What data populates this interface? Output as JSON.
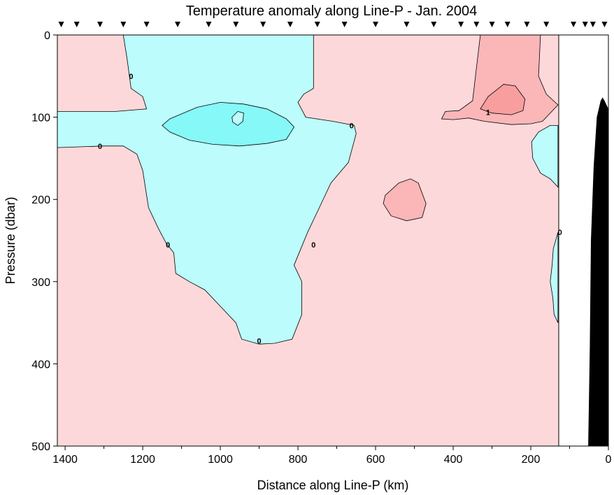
{
  "chart_data": {
    "type": "heatmap",
    "title": "Temperature anomaly along Line-P - Jan. 2004",
    "xlabel": "Distance along Line-P (km)",
    "ylabel": "Pressure (dbar)",
    "xlim": [
      1420,
      0
    ],
    "ylim": [
      0,
      500
    ],
    "x_reversed": true,
    "y_reversed": true,
    "x_ticks": [
      1400,
      1200,
      1000,
      800,
      600,
      400,
      200,
      0
    ],
    "y_ticks": [
      0,
      100,
      200,
      300,
      400,
      500
    ],
    "station_distances_km": [
      1410,
      1370,
      1310,
      1250,
      1190,
      1110,
      1030,
      960,
      890,
      820,
      750,
      680,
      600,
      520,
      450,
      380,
      340,
      300,
      260,
      210,
      160,
      90,
      60,
      40,
      10
    ],
    "colors": {
      "positive_anomaly": "#fdd8da",
      "anomaly_above_1": "#fbb6b8",
      "anomaly_above_2": "#f89e9f",
      "negative_anomaly": "#bcfcfc",
      "anomaly_below_minus_1": "#86f8f8",
      "no_data": "#ffffff",
      "bathymetry": "#000000"
    },
    "contour_labels": [
      {
        "text": "0",
        "x": 1230,
        "y": 50
      },
      {
        "text": "0",
        "x": 1310,
        "y": 135
      },
      {
        "text": "0",
        "x": 662,
        "y": 110
      },
      {
        "text": "1",
        "x": 310,
        "y": 94
      },
      {
        "text": "0",
        "x": 1135,
        "y": 255
      },
      {
        "text": "0",
        "x": 760,
        "y": 255
      },
      {
        "text": "0",
        "x": 900,
        "y": 372
      },
      {
        "text": "0",
        "x": 125,
        "y": 240
      }
    ],
    "regions": {
      "negative_main": [
        [
          1250,
          0
        ],
        [
          1240,
          30
        ],
        [
          1230,
          65
        ],
        [
          1200,
          75
        ],
        [
          1190,
          90
        ],
        [
          1270,
          93
        ],
        [
          1420,
          93
        ],
        [
          1420,
          137
        ],
        [
          1300,
          135
        ],
        [
          1250,
          135
        ],
        [
          1215,
          145
        ],
        [
          1200,
          165
        ],
        [
          1185,
          210
        ],
        [
          1160,
          235
        ],
        [
          1140,
          253
        ],
        [
          1120,
          265
        ],
        [
          1115,
          290
        ],
        [
          1080,
          300
        ],
        [
          1040,
          310
        ],
        [
          1000,
          330
        ],
        [
          960,
          350
        ],
        [
          945,
          370
        ],
        [
          900,
          376
        ],
        [
          860,
          375
        ],
        [
          815,
          370
        ],
        [
          790,
          340
        ],
        [
          790,
          300
        ],
        [
          810,
          280
        ],
        [
          775,
          240
        ],
        [
          745,
          210
        ],
        [
          715,
          180
        ],
        [
          670,
          155
        ],
        [
          650,
          120
        ],
        [
          655,
          110
        ],
        [
          710,
          105
        ],
        [
          780,
          100
        ],
        [
          800,
          82
        ],
        [
          785,
          72
        ],
        [
          760,
          65
        ],
        [
          760,
          0
        ]
      ],
      "negative_strong_band": [
        [
          1150,
          110
        ],
        [
          1130,
          102
        ],
        [
          1060,
          88
        ],
        [
          1000,
          82
        ],
        [
          940,
          84
        ],
        [
          880,
          90
        ],
        [
          830,
          102
        ],
        [
          810,
          112
        ],
        [
          830,
          127
        ],
        [
          880,
          132
        ],
        [
          950,
          135
        ],
        [
          1020,
          133
        ],
        [
          1080,
          128
        ],
        [
          1130,
          118
        ]
      ],
      "negative_strong_patch": [
        [
          970,
          100
        ],
        [
          955,
          93
        ],
        [
          940,
          95
        ],
        [
          942,
          105
        ],
        [
          955,
          110
        ],
        [
          968,
          106
        ]
      ],
      "positive_1_upper": [
        [
          330,
          0
        ],
        [
          340,
          40
        ],
        [
          350,
          80
        ],
        [
          385,
          92
        ],
        [
          420,
          93
        ],
        [
          430,
          102
        ],
        [
          400,
          103
        ],
        [
          360,
          101
        ],
        [
          320,
          105
        ],
        [
          250,
          109
        ],
        [
          200,
          108
        ],
        [
          170,
          105
        ],
        [
          130,
          85
        ],
        [
          160,
          72
        ],
        [
          180,
          50
        ],
        [
          175,
          0
        ]
      ],
      "positive_1_mid": [
        [
          540,
          180
        ],
        [
          510,
          175
        ],
        [
          490,
          180
        ],
        [
          470,
          205
        ],
        [
          480,
          222
        ],
        [
          520,
          226
        ],
        [
          560,
          220
        ],
        [
          580,
          205
        ],
        [
          575,
          195
        ]
      ],
      "positive_2": [
        [
          330,
          90
        ],
        [
          310,
          75
        ],
        [
          270,
          60
        ],
        [
          240,
          62
        ],
        [
          215,
          78
        ],
        [
          220,
          92
        ],
        [
          250,
          97
        ],
        [
          300,
          95
        ]
      ],
      "negative_east_upper": [
        [
          130,
          110
        ],
        [
          130,
          185
        ],
        [
          150,
          175
        ],
        [
          175,
          168
        ],
        [
          195,
          150
        ],
        [
          198,
          130
        ],
        [
          180,
          118
        ],
        [
          150,
          110
        ]
      ],
      "negative_east_lower": [
        [
          130,
          240
        ],
        [
          130,
          350
        ],
        [
          140,
          340
        ],
        [
          143,
          320
        ],
        [
          150,
          300
        ],
        [
          145,
          280
        ],
        [
          142,
          260
        ]
      ],
      "bathymetry": [
        [
          52,
          500
        ],
        [
          48,
          380
        ],
        [
          45,
          250
        ],
        [
          38,
          160
        ],
        [
          30,
          100
        ],
        [
          20,
          80
        ],
        [
          15,
          76
        ],
        [
          10,
          80
        ],
        [
          0,
          90
        ],
        [
          0,
          500
        ]
      ]
    }
  }
}
